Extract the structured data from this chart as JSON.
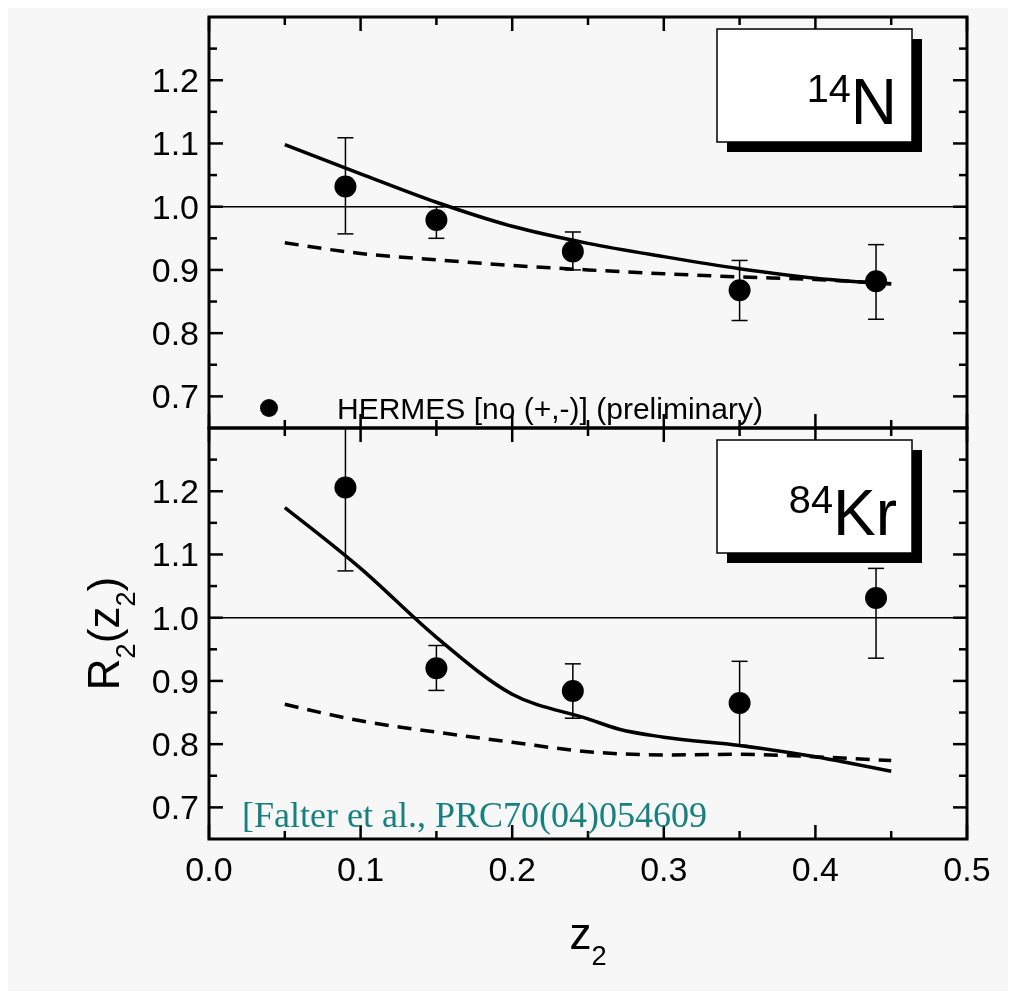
{
  "chart_data": [
    {
      "type": "scatter",
      "xlim": [
        0,
        0.5
      ],
      "ylim": [
        0.65,
        1.3
      ],
      "xticks": [
        0,
        {
          "value": 0.05,
          "label": null
        },
        0.1,
        {
          "value": 0.15,
          "label": null
        },
        0.2,
        {
          "value": 0.25,
          "label": null
        },
        0.3,
        {
          "value": 0.35,
          "label": null
        },
        0.4,
        {
          "value": 0.45,
          "label": null
        },
        0.5
      ],
      "yticks": [
        0.7,
        {
          "value": 0.75,
          "label": null
        },
        0.8,
        {
          "value": 0.85,
          "label": null
        },
        0.9,
        {
          "value": 0.95,
          "label": null
        },
        {
          "value": 1,
          "label": "1.0"
        },
        {
          "value": 1.05,
          "label": null
        },
        1.1,
        {
          "value": 1.15,
          "label": null
        },
        1.2,
        {
          "value": 1.25,
          "label": null
        }
      ],
      "tick_labels": "y",
      "legend": "bottom left",
      "grid": false,
      "ref_lines": [
        {
          "axis": "y",
          "value": 1,
          "color": "#000000"
        }
      ],
      "annotations": [
        "$^{14}$N"
      ],
      "series": [
        {
          "name": "HERMES [no (+,-)] (preliminary)",
          "marker": "circle",
          "color": "#000000",
          "x": [
            0.09,
            0.15,
            0.24,
            0.35,
            0.44
          ],
          "values": [
            1.032,
            0.979,
            0.929,
            0.868,
            0.882
          ],
          "errors": [
            [
              0.957,
              1.109
            ],
            [
              0.95,
              1.0
            ],
            [
              0.9,
              0.96
            ],
            [
              0.82,
              0.915
            ],
            [
              0.822,
              0.94
            ]
          ]
        },
        {
          "type": "line",
          "line_style": "solid",
          "color": "#000000",
          "x": [
            0.05,
            0.1,
            0.15,
            0.2,
            0.25,
            0.3,
            0.35,
            0.4,
            0.45
          ],
          "values": [
            1.098,
            1.052,
            1.007,
            0.969,
            0.942,
            0.921,
            0.902,
            0.887,
            0.878
          ]
        },
        {
          "type": "line",
          "line_style": "dashed",
          "color": "#000000",
          "x": [
            0.05,
            0.1,
            0.15,
            0.2,
            0.25,
            0.3,
            0.35,
            0.4,
            0.45
          ],
          "values": [
            0.943,
            0.926,
            0.916,
            0.907,
            0.9,
            0.894,
            0.889,
            0.885,
            0.878
          ]
        }
      ]
    },
    {
      "type": "scatter",
      "xlim": [
        0,
        0.5
      ],
      "ylim": [
        0.65,
        1.3
      ],
      "xlabel": "z$_{2}$",
      "ylabel": "R$_{2}$(z$_{2}$)",
      "xticks": [
        {
          "value": 0,
          "label": "0.0"
        },
        {
          "value": 0.05,
          "label": null
        },
        0.1,
        {
          "value": 0.15,
          "label": null
        },
        0.2,
        {
          "value": 0.25,
          "label": null
        },
        0.3,
        {
          "value": 0.35,
          "label": null
        },
        0.4,
        {
          "value": 0.45,
          "label": null
        },
        0.5
      ],
      "yticks": [
        0.7,
        {
          "value": 0.75,
          "label": null
        },
        0.8,
        {
          "value": 0.85,
          "label": null
        },
        0.9,
        {
          "value": 0.95,
          "label": null
        },
        {
          "value": 1,
          "label": "1.0"
        },
        {
          "value": 1.05,
          "label": null
        },
        1.1,
        {
          "value": 1.15,
          "label": null
        },
        1.2,
        {
          "value": 1.25,
          "label": null
        }
      ],
      "grid": false,
      "ref_lines": [
        {
          "axis": "y",
          "value": 1,
          "color": "#000000"
        }
      ],
      "annotations": [
        "$^{84}$Kr",
        "[Falter et al., PRC70(04)054609"
      ],
      "series": [
        {
          "marker": "circle",
          "color": "#000000",
          "x": [
            0.09,
            0.15,
            0.24,
            0.35,
            0.44
          ],
          "values": [
            1.206,
            0.92,
            0.884,
            0.865,
            1.031
          ],
          "errors": [
            [
              1.074,
              1.3
            ],
            [
              0.885,
              0.956
            ],
            [
              0.841,
              0.927
            ],
            [
              0.798,
              0.931
            ],
            [
              0.936,
              1.078
            ]
          ]
        },
        {
          "type": "line",
          "line_style": "solid",
          "color": "#000000",
          "x": [
            0.05,
            0.1,
            0.15,
            0.2,
            0.25,
            0.27,
            0.3,
            0.35,
            0.4,
            0.45
          ],
          "values": [
            1.174,
            1.078,
            0.969,
            0.879,
            0.84,
            0.824,
            0.811,
            0.798,
            0.78,
            0.757
          ]
        },
        {
          "type": "line",
          "line_style": "dashed",
          "color": "#000000",
          "x": [
            0.05,
            0.1,
            0.15,
            0.2,
            0.25,
            0.3,
            0.35,
            0.4,
            0.45
          ],
          "values": [
            0.863,
            0.837,
            0.819,
            0.803,
            0.788,
            0.783,
            0.784,
            0.78,
            0.774
          ]
        }
      ]
    }
  ]
}
